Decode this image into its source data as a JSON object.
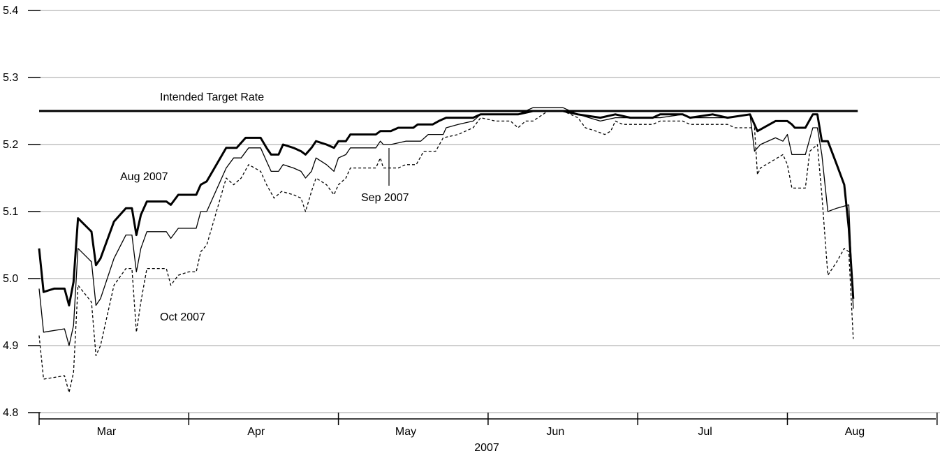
{
  "chart_data": {
    "type": "line",
    "xlabel": "2007",
    "ylim": [
      4.8,
      5.4
    ],
    "yticks": [
      4.8,
      4.9,
      5.0,
      5.1,
      5.2,
      5.3,
      5.4
    ],
    "ytick_labels": [
      "4.8",
      "4.9",
      "5.0",
      "5.1",
      "5.2",
      "5.3",
      "5.4"
    ],
    "months": [
      "Mar",
      "Apr",
      "May",
      "Jun",
      "Jul",
      "Aug"
    ],
    "grid": true,
    "target": {
      "label": "Intended Target Rate",
      "value": 5.25,
      "x_range": [
        0,
        5.47
      ]
    },
    "annotations": {
      "aug": "Aug 2007",
      "sep": "Sep 2007",
      "oct": "Oct 2007"
    },
    "series": [
      {
        "name": "Aug 2007",
        "style": "thick",
        "points": [
          [
            0,
            5.045
          ],
          [
            0.03,
            4.98
          ],
          [
            0.1,
            4.985
          ],
          [
            0.17,
            4.985
          ],
          [
            0.2,
            4.96
          ],
          [
            0.23,
            4.995
          ],
          [
            0.26,
            5.09
          ],
          [
            0.35,
            5.07
          ],
          [
            0.38,
            5.02
          ],
          [
            0.41,
            5.03
          ],
          [
            0.5,
            5.085
          ],
          [
            0.58,
            5.105
          ],
          [
            0.62,
            5.105
          ],
          [
            0.65,
            5.065
          ],
          [
            0.68,
            5.095
          ],
          [
            0.72,
            5.115
          ],
          [
            0.85,
            5.115
          ],
          [
            0.88,
            5.11
          ],
          [
            0.93,
            5.125
          ],
          [
            1.0,
            5.125
          ],
          [
            1.05,
            5.125
          ],
          [
            1.08,
            5.14
          ],
          [
            1.12,
            5.145
          ],
          [
            1.25,
            5.195
          ],
          [
            1.32,
            5.195
          ],
          [
            1.38,
            5.21
          ],
          [
            1.48,
            5.21
          ],
          [
            1.52,
            5.195
          ],
          [
            1.55,
            5.185
          ],
          [
            1.6,
            5.185
          ],
          [
            1.63,
            5.2
          ],
          [
            1.7,
            5.195
          ],
          [
            1.75,
            5.19
          ],
          [
            1.78,
            5.185
          ],
          [
            1.82,
            5.195
          ],
          [
            1.85,
            5.205
          ],
          [
            1.92,
            5.2
          ],
          [
            1.97,
            5.195
          ],
          [
            2.0,
            5.205
          ],
          [
            2.05,
            5.205
          ],
          [
            2.08,
            5.215
          ],
          [
            2.25,
            5.215
          ],
          [
            2.28,
            5.22
          ],
          [
            2.35,
            5.22
          ],
          [
            2.4,
            5.225
          ],
          [
            2.5,
            5.225
          ],
          [
            2.53,
            5.23
          ],
          [
            2.63,
            5.23
          ],
          [
            2.67,
            5.235
          ],
          [
            2.72,
            5.24
          ],
          [
            2.9,
            5.24
          ],
          [
            2.95,
            5.245
          ],
          [
            3.2,
            5.245
          ],
          [
            3.3,
            5.25
          ],
          [
            3.5,
            5.25
          ],
          [
            3.6,
            5.245
          ],
          [
            3.75,
            5.24
          ],
          [
            3.85,
            5.245
          ],
          [
            3.95,
            5.24
          ],
          [
            4.1,
            5.24
          ],
          [
            4.15,
            5.245
          ],
          [
            4.3,
            5.245
          ],
          [
            4.35,
            5.24
          ],
          [
            4.5,
            5.245
          ],
          [
            4.6,
            5.24
          ],
          [
            4.75,
            5.245
          ],
          [
            4.8,
            5.22
          ],
          [
            4.92,
            5.235
          ],
          [
            5.0,
            5.235
          ],
          [
            5.03,
            5.23
          ],
          [
            5.05,
            5.225
          ],
          [
            5.12,
            5.225
          ],
          [
            5.17,
            5.245
          ],
          [
            5.2,
            5.245
          ],
          [
            5.23,
            5.205
          ],
          [
            5.27,
            5.205
          ],
          [
            5.33,
            5.17
          ],
          [
            5.38,
            5.14
          ],
          [
            5.41,
            5.075
          ],
          [
            5.44,
            4.97
          ]
        ]
      },
      {
        "name": "Sep 2007",
        "style": "thin",
        "points": [
          [
            0,
            4.985
          ],
          [
            0.03,
            4.92
          ],
          [
            0.17,
            4.925
          ],
          [
            0.2,
            4.9
          ],
          [
            0.23,
            4.93
          ],
          [
            0.26,
            5.045
          ],
          [
            0.35,
            5.025
          ],
          [
            0.38,
            4.96
          ],
          [
            0.41,
            4.97
          ],
          [
            0.5,
            5.03
          ],
          [
            0.58,
            5.065
          ],
          [
            0.62,
            5.065
          ],
          [
            0.65,
            5.01
          ],
          [
            0.68,
            5.045
          ],
          [
            0.72,
            5.07
          ],
          [
            0.85,
            5.07
          ],
          [
            0.88,
            5.06
          ],
          [
            0.93,
            5.075
          ],
          [
            1.05,
            5.075
          ],
          [
            1.08,
            5.1
          ],
          [
            1.12,
            5.1
          ],
          [
            1.25,
            5.165
          ],
          [
            1.3,
            5.18
          ],
          [
            1.35,
            5.18
          ],
          [
            1.4,
            5.195
          ],
          [
            1.48,
            5.195
          ],
          [
            1.52,
            5.175
          ],
          [
            1.55,
            5.16
          ],
          [
            1.6,
            5.16
          ],
          [
            1.63,
            5.17
          ],
          [
            1.7,
            5.165
          ],
          [
            1.75,
            5.16
          ],
          [
            1.78,
            5.15
          ],
          [
            1.82,
            5.16
          ],
          [
            1.85,
            5.18
          ],
          [
            1.92,
            5.17
          ],
          [
            1.97,
            5.16
          ],
          [
            2.0,
            5.18
          ],
          [
            2.05,
            5.185
          ],
          [
            2.08,
            5.195
          ],
          [
            2.25,
            5.195
          ],
          [
            2.28,
            5.205
          ],
          [
            2.3,
            5.2
          ],
          [
            2.35,
            5.2
          ],
          [
            2.45,
            5.205
          ],
          [
            2.55,
            5.205
          ],
          [
            2.6,
            5.215
          ],
          [
            2.7,
            5.215
          ],
          [
            2.72,
            5.225
          ],
          [
            2.8,
            5.23
          ],
          [
            2.9,
            5.235
          ],
          [
            2.95,
            5.245
          ],
          [
            3.2,
            5.245
          ],
          [
            3.25,
            5.25
          ],
          [
            3.3,
            5.255
          ],
          [
            3.5,
            5.255
          ],
          [
            3.6,
            5.245
          ],
          [
            3.75,
            5.235
          ],
          [
            3.85,
            5.24
          ],
          [
            3.95,
            5.24
          ],
          [
            4.1,
            5.24
          ],
          [
            4.15,
            5.24
          ],
          [
            4.3,
            5.245
          ],
          [
            4.35,
            5.24
          ],
          [
            4.5,
            5.24
          ],
          [
            4.6,
            5.24
          ],
          [
            4.75,
            5.245
          ],
          [
            4.78,
            5.19
          ],
          [
            4.82,
            5.2
          ],
          [
            4.92,
            5.21
          ],
          [
            4.97,
            5.205
          ],
          [
            5.0,
            5.215
          ],
          [
            5.03,
            5.185
          ],
          [
            5.12,
            5.185
          ],
          [
            5.17,
            5.225
          ],
          [
            5.2,
            5.225
          ],
          [
            5.23,
            5.185
          ],
          [
            5.27,
            5.1
          ],
          [
            5.33,
            5.105
          ],
          [
            5.41,
            5.11
          ],
          [
            5.44,
            4.955
          ]
        ]
      },
      {
        "name": "Oct 2007",
        "style": "dashed",
        "points": [
          [
            0,
            4.915
          ],
          [
            0.03,
            4.85
          ],
          [
            0.17,
            4.855
          ],
          [
            0.2,
            4.83
          ],
          [
            0.23,
            4.86
          ],
          [
            0.26,
            4.99
          ],
          [
            0.35,
            4.965
          ],
          [
            0.38,
            4.885
          ],
          [
            0.41,
            4.9
          ],
          [
            0.5,
            4.99
          ],
          [
            0.58,
            5.015
          ],
          [
            0.62,
            5.015
          ],
          [
            0.65,
            4.92
          ],
          [
            0.68,
            4.965
          ],
          [
            0.72,
            5.015
          ],
          [
            0.85,
            5.015
          ],
          [
            0.88,
            4.99
          ],
          [
            0.93,
            5.005
          ],
          [
            1.0,
            5.01
          ],
          [
            1.05,
            5.01
          ],
          [
            1.08,
            5.04
          ],
          [
            1.12,
            5.05
          ],
          [
            1.25,
            5.15
          ],
          [
            1.3,
            5.14
          ],
          [
            1.35,
            5.15
          ],
          [
            1.4,
            5.17
          ],
          [
            1.48,
            5.16
          ],
          [
            1.52,
            5.14
          ],
          [
            1.57,
            5.12
          ],
          [
            1.62,
            5.13
          ],
          [
            1.7,
            5.125
          ],
          [
            1.75,
            5.12
          ],
          [
            1.78,
            5.1
          ],
          [
            1.82,
            5.13
          ],
          [
            1.85,
            5.15
          ],
          [
            1.92,
            5.14
          ],
          [
            1.97,
            5.125
          ],
          [
            2.0,
            5.14
          ],
          [
            2.05,
            5.15
          ],
          [
            2.08,
            5.165
          ],
          [
            2.25,
            5.165
          ],
          [
            2.28,
            5.18
          ],
          [
            2.3,
            5.165
          ],
          [
            2.4,
            5.165
          ],
          [
            2.45,
            5.17
          ],
          [
            2.52,
            5.17
          ],
          [
            2.57,
            5.19
          ],
          [
            2.65,
            5.19
          ],
          [
            2.7,
            5.21
          ],
          [
            2.8,
            5.215
          ],
          [
            2.9,
            5.225
          ],
          [
            2.95,
            5.24
          ],
          [
            3.05,
            5.235
          ],
          [
            3.15,
            5.235
          ],
          [
            3.2,
            5.225
          ],
          [
            3.25,
            5.235
          ],
          [
            3.3,
            5.235
          ],
          [
            3.4,
            5.25
          ],
          [
            3.5,
            5.25
          ],
          [
            3.55,
            5.245
          ],
          [
            3.6,
            5.24
          ],
          [
            3.65,
            5.225
          ],
          [
            3.72,
            5.22
          ],
          [
            3.78,
            5.215
          ],
          [
            3.82,
            5.22
          ],
          [
            3.85,
            5.235
          ],
          [
            3.9,
            5.23
          ],
          [
            4.1,
            5.23
          ],
          [
            4.15,
            5.235
          ],
          [
            4.3,
            5.235
          ],
          [
            4.35,
            5.23
          ],
          [
            4.6,
            5.23
          ],
          [
            4.65,
            5.225
          ],
          [
            4.78,
            5.225
          ],
          [
            4.8,
            5.155
          ],
          [
            4.82,
            5.165
          ],
          [
            4.97,
            5.185
          ],
          [
            5.0,
            5.17
          ],
          [
            5.03,
            5.135
          ],
          [
            5.12,
            5.135
          ],
          [
            5.15,
            5.19
          ],
          [
            5.2,
            5.2
          ],
          [
            5.23,
            5.125
          ],
          [
            5.27,
            5.005
          ],
          [
            5.33,
            5.025
          ],
          [
            5.38,
            5.045
          ],
          [
            5.41,
            5.04
          ],
          [
            5.44,
            4.91
          ]
        ]
      }
    ]
  }
}
